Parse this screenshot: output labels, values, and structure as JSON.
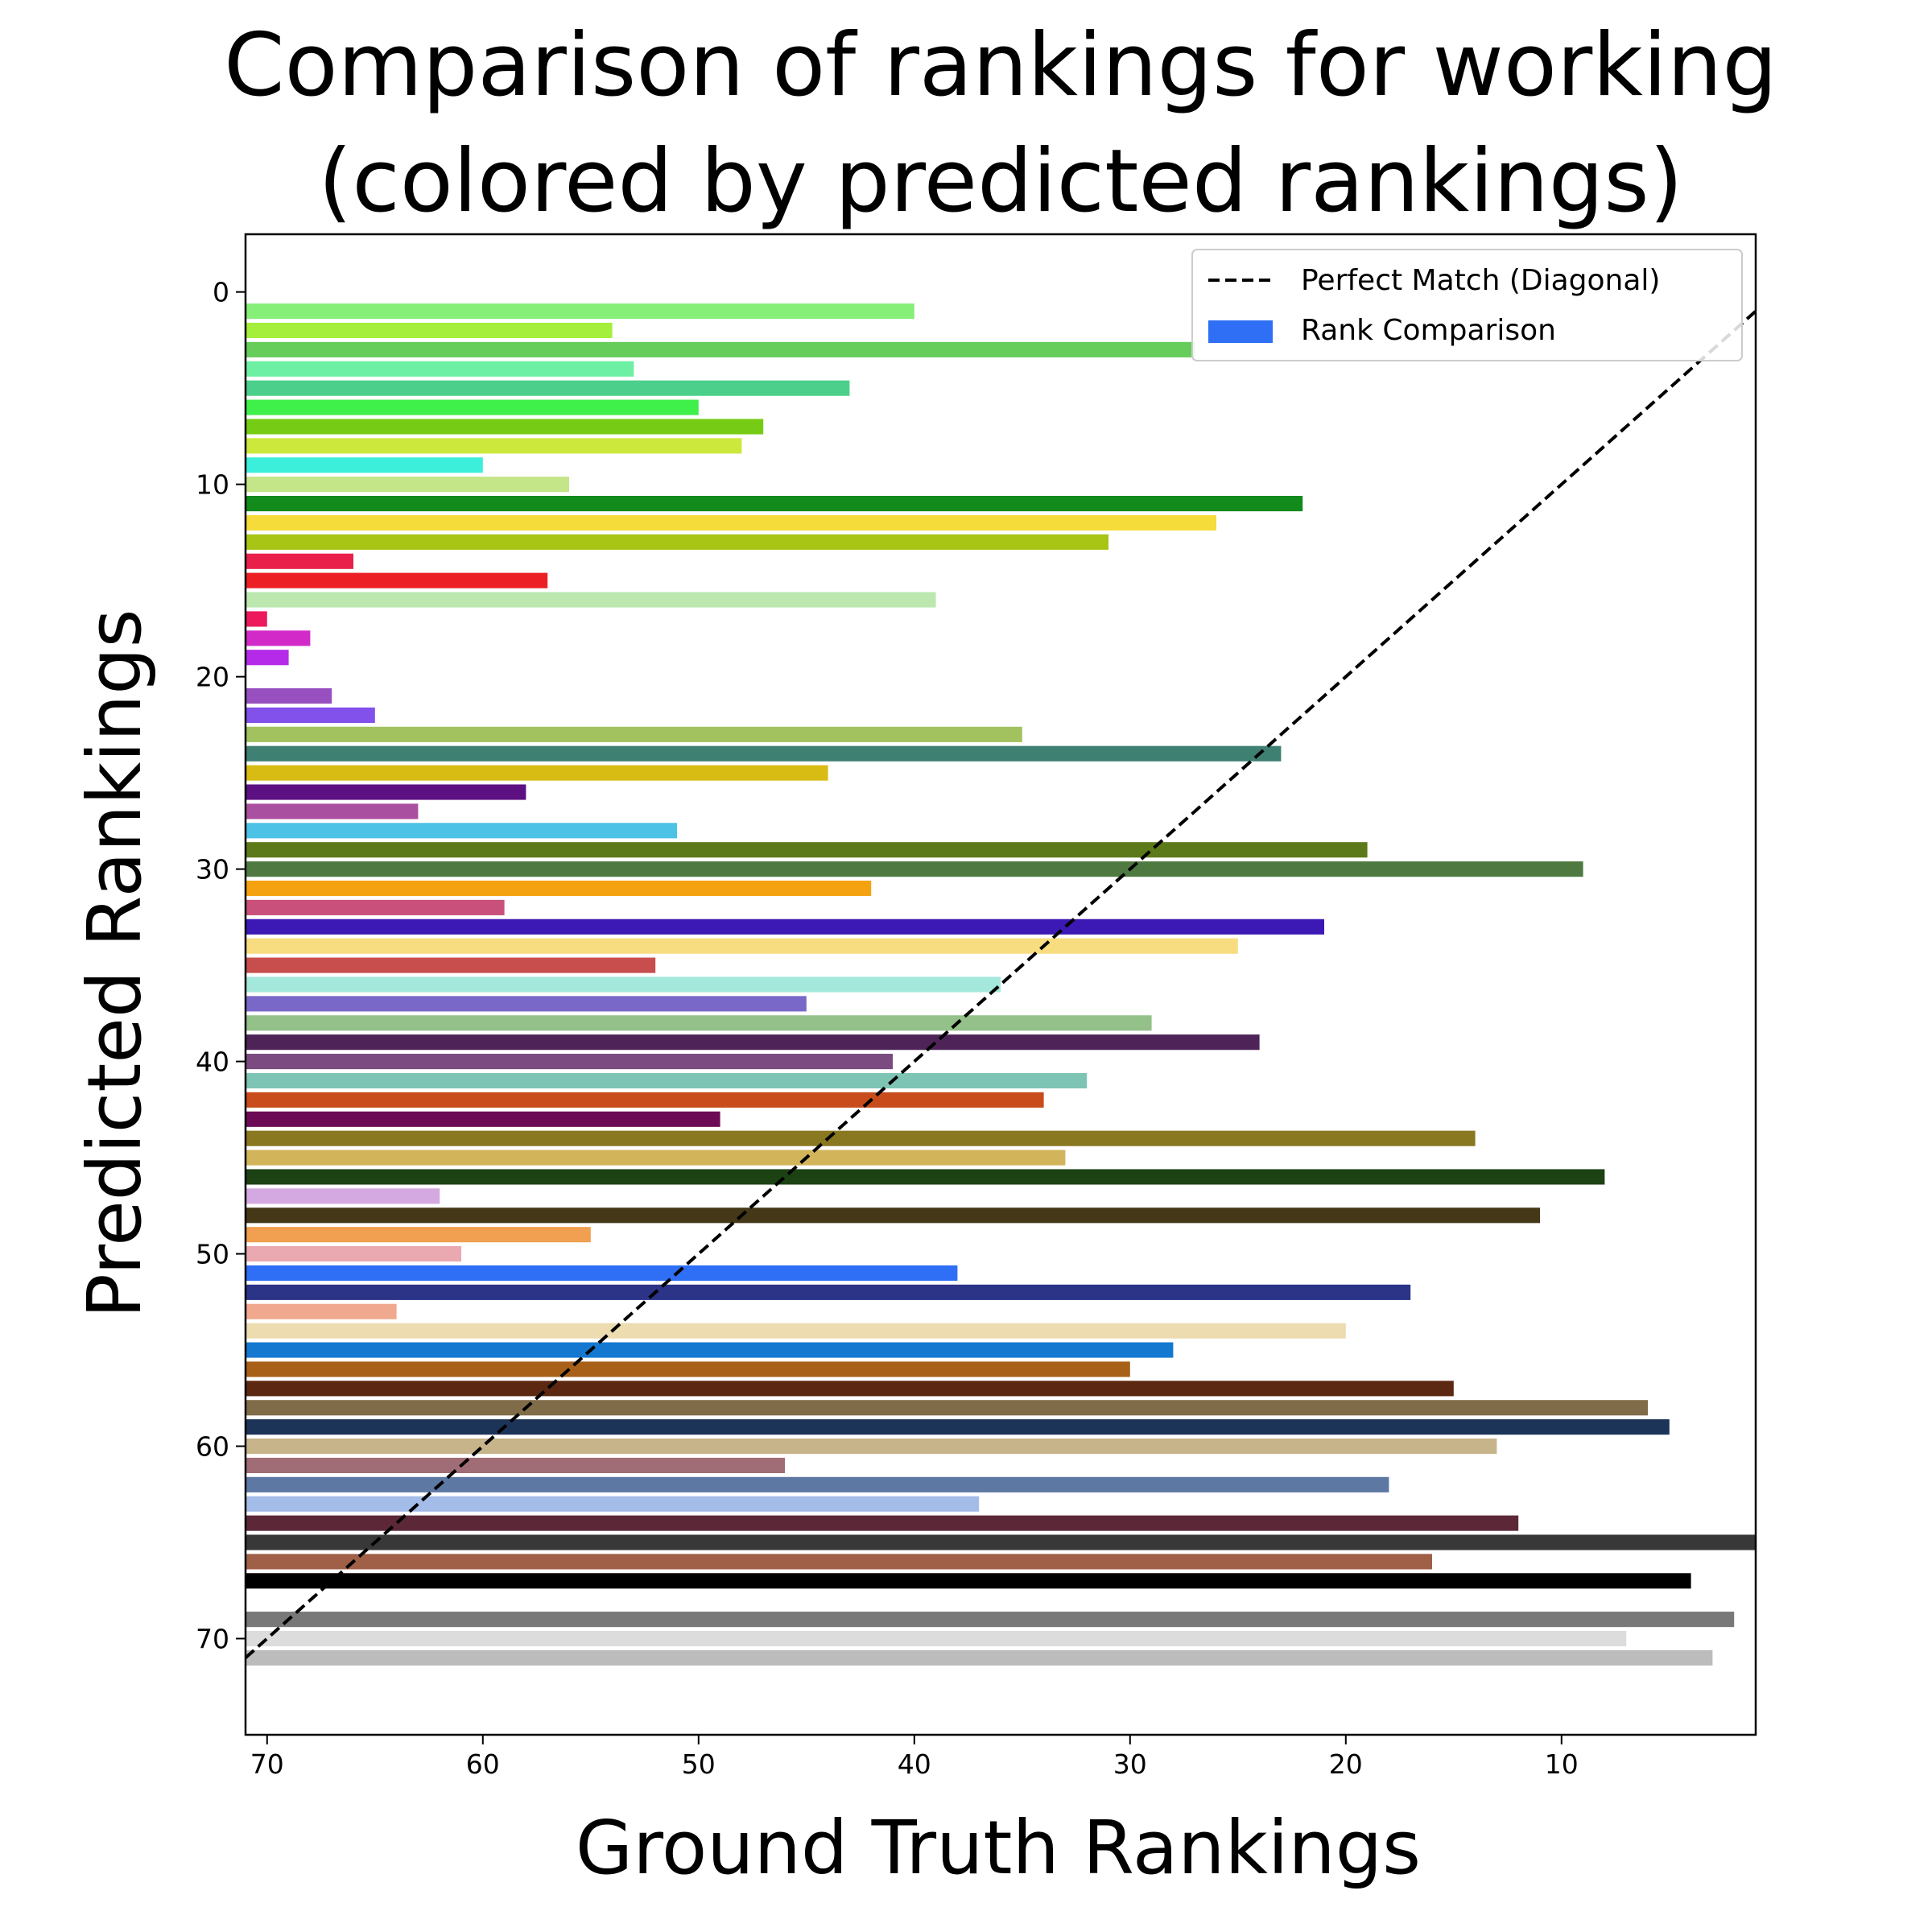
{
  "chart_data": {
    "type": "bar",
    "orientation": "horizontal",
    "title": "Comparison of rankings for working\n(colored by predicted rankings)",
    "xlabel": "Ground Truth Rankings",
    "ylabel": "Predicted Rankings",
    "xlim": [
      71,
      1
    ],
    "ylim": [
      75,
      -3
    ],
    "x_inverted": true,
    "y_inverted": true,
    "xticks": [
      70,
      60,
      50,
      40,
      30,
      20,
      10
    ],
    "yticks": [
      0,
      10,
      20,
      30,
      40,
      50,
      60,
      70
    ],
    "grid": false,
    "legend_placement": "top-right",
    "legend": [
      {
        "label": "Perfect Match (Diagonal)",
        "style": "dashed-line",
        "color": "#000000"
      },
      {
        "label": "Rank Comparison",
        "style": "patch",
        "color": "#2f6ff5"
      }
    ],
    "diagonal": {
      "x": [
        71,
        1
      ],
      "y": [
        71,
        1
      ]
    },
    "bars": [
      {
        "predicted": 1,
        "ground_truth": 40,
        "color": "#86ef78"
      },
      {
        "predicted": 2,
        "ground_truth": 54,
        "color": "#a4ee3c"
      },
      {
        "predicted": 3,
        "ground_truth": 27,
        "color": "#66cc5a"
      },
      {
        "predicted": 4,
        "ground_truth": 53,
        "color": "#6ef0a4"
      },
      {
        "predicted": 5,
        "ground_truth": 43,
        "color": "#4ccf8a"
      },
      {
        "predicted": 6,
        "ground_truth": 50,
        "color": "#3ff04a"
      },
      {
        "predicted": 7,
        "ground_truth": 47,
        "color": "#76cc14"
      },
      {
        "predicted": 8,
        "ground_truth": 48,
        "color": "#cce83c"
      },
      {
        "predicted": 9,
        "ground_truth": 60,
        "color": "#3cefda"
      },
      {
        "predicted": 10,
        "ground_truth": 56,
        "color": "#c4e688"
      },
      {
        "predicted": 11,
        "ground_truth": 22,
        "color": "#128a1c"
      },
      {
        "predicted": 12,
        "ground_truth": 26,
        "color": "#f5dc3a"
      },
      {
        "predicted": 13,
        "ground_truth": 31,
        "color": "#a8c414"
      },
      {
        "predicted": 14,
        "ground_truth": 66,
        "color": "#e8204a"
      },
      {
        "predicted": 15,
        "ground_truth": 57,
        "color": "#ec2024"
      },
      {
        "predicted": 16,
        "ground_truth": 39,
        "color": "#bce8b0"
      },
      {
        "predicted": 17,
        "ground_truth": 70,
        "color": "#ec1a5c"
      },
      {
        "predicted": 18,
        "ground_truth": 68,
        "color": "#d22ac8"
      },
      {
        "predicted": 19,
        "ground_truth": 69,
        "color": "#b42ae8"
      },
      {
        "predicted": 21,
        "ground_truth": 67,
        "color": "#9850c0"
      },
      {
        "predicted": 22,
        "ground_truth": 65,
        "color": "#8250ea"
      },
      {
        "predicted": 23,
        "ground_truth": 35,
        "color": "#a2c260"
      },
      {
        "predicted": 24,
        "ground_truth": 23,
        "color": "#3e8072"
      },
      {
        "predicted": 25,
        "ground_truth": 44,
        "color": "#d8bc14"
      },
      {
        "predicted": 26,
        "ground_truth": 58,
        "color": "#5c1082"
      },
      {
        "predicted": 27,
        "ground_truth": 63,
        "color": "#aa50a0"
      },
      {
        "predicted": 28,
        "ground_truth": 51,
        "color": "#4cc2e6"
      },
      {
        "predicted": 29,
        "ground_truth": 19,
        "color": "#5c7a1a"
      },
      {
        "predicted": 30,
        "ground_truth": 9,
        "color": "#4e7a42"
      },
      {
        "predicted": 31,
        "ground_truth": 42,
        "color": "#f5a210"
      },
      {
        "predicted": 32,
        "ground_truth": 59,
        "color": "#c8507a"
      },
      {
        "predicted": 33,
        "ground_truth": 21,
        "color": "#3c18b4"
      },
      {
        "predicted": 34,
        "ground_truth": 25,
        "color": "#f8dc80"
      },
      {
        "predicted": 35,
        "ground_truth": 52,
        "color": "#c84e4e"
      },
      {
        "predicted": 36,
        "ground_truth": 36,
        "color": "#a4e8dc"
      },
      {
        "predicted": 37,
        "ground_truth": 45,
        "color": "#7a68c8"
      },
      {
        "predicted": 38,
        "ground_truth": 29,
        "color": "#94c08a"
      },
      {
        "predicted": 39,
        "ground_truth": 24,
        "color": "#4e2458"
      },
      {
        "predicted": 40,
        "ground_truth": 41,
        "color": "#7a4a80"
      },
      {
        "predicted": 41,
        "ground_truth": 32,
        "color": "#7ec4b4"
      },
      {
        "predicted": 42,
        "ground_truth": 34,
        "color": "#c84c1c"
      },
      {
        "predicted": 43,
        "ground_truth": 49,
        "color": "#6c0a56"
      },
      {
        "predicted": 44,
        "ground_truth": 14,
        "color": "#8a7820"
      },
      {
        "predicted": 45,
        "ground_truth": 33,
        "color": "#d2b45a"
      },
      {
        "predicted": 46,
        "ground_truth": 8,
        "color": "#1c4214"
      },
      {
        "predicted": 47,
        "ground_truth": 62,
        "color": "#d4a8e0"
      },
      {
        "predicted": 48,
        "ground_truth": 11,
        "color": "#443818"
      },
      {
        "predicted": 49,
        "ground_truth": 55,
        "color": "#f0a050"
      },
      {
        "predicted": 50,
        "ground_truth": 61,
        "color": "#eaa8b0"
      },
      {
        "predicted": 51,
        "ground_truth": 38,
        "color": "#2f6ff5"
      },
      {
        "predicted": 52,
        "ground_truth": 17,
        "color": "#2c3488"
      },
      {
        "predicted": 53,
        "ground_truth": 64,
        "color": "#f0a88e"
      },
      {
        "predicted": 54,
        "ground_truth": 20,
        "color": "#ecdcb0"
      },
      {
        "predicted": 55,
        "ground_truth": 28,
        "color": "#1478d0"
      },
      {
        "predicted": 56,
        "ground_truth": 30,
        "color": "#a86018"
      },
      {
        "predicted": 57,
        "ground_truth": 15,
        "color": "#5c2812"
      },
      {
        "predicted": 58,
        "ground_truth": 6,
        "color": "#806c48"
      },
      {
        "predicted": 59,
        "ground_truth": 5,
        "color": "#1c3458"
      },
      {
        "predicted": 60,
        "ground_truth": 13,
        "color": "#c8b48a"
      },
      {
        "predicted": 61,
        "ground_truth": 46,
        "color": "#a06c76"
      },
      {
        "predicted": 62,
        "ground_truth": 18,
        "color": "#5e78a4"
      },
      {
        "predicted": 63,
        "ground_truth": 37,
        "color": "#a4bce8"
      },
      {
        "predicted": 64,
        "ground_truth": 12,
        "color": "#5c2838"
      },
      {
        "predicted": 65,
        "ground_truth": 1,
        "color": "#383838"
      },
      {
        "predicted": 66,
        "ground_truth": 16,
        "color": "#a06048"
      },
      {
        "predicted": 67,
        "ground_truth": 4,
        "color": "#000000"
      },
      {
        "predicted": 69,
        "ground_truth": 2,
        "color": "#787878"
      },
      {
        "predicted": 70,
        "ground_truth": 7,
        "color": "#dcdcdc"
      },
      {
        "predicted": 71,
        "ground_truth": 3,
        "color": "#bcbcbc"
      }
    ]
  }
}
